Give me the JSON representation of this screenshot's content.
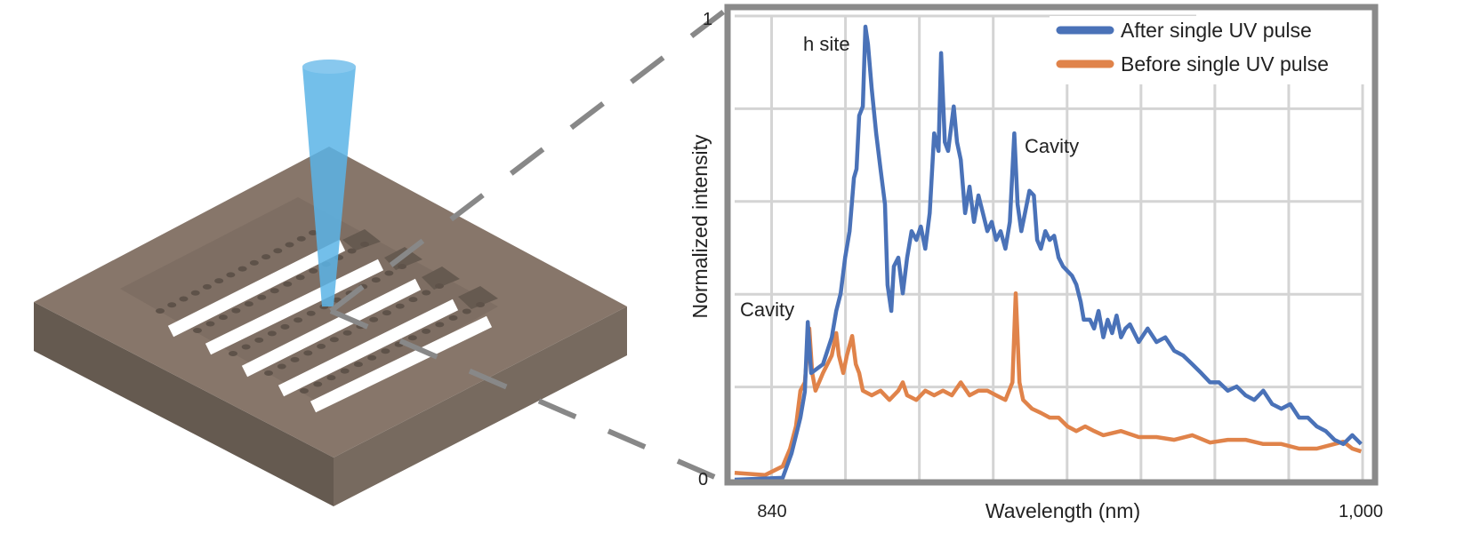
{
  "colors": {
    "after": "#4a72b8",
    "before": "#e0834a",
    "beam": "#5ab4e6",
    "slab_top": "#87766a",
    "slab_side": "#655a50",
    "frame": "#8a8a8a",
    "grid": "#d4d4d4"
  },
  "chart_data": {
    "type": "line",
    "title": "",
    "xlabel": "Wavelength (nm)",
    "ylabel": "Normalized intensity",
    "xlim": [
      830,
      1000
    ],
    "ylim": [
      0,
      1
    ],
    "x_ticks": [
      {
        "value": 840,
        "label": "840"
      },
      {
        "value": 1000,
        "label": "1,000"
      }
    ],
    "y_ticks": [
      {
        "value": 0,
        "label": "0"
      },
      {
        "value": 1,
        "label": "1"
      }
    ],
    "grid": {
      "x_step": 20,
      "y_step": 0.2,
      "on": true
    },
    "legend": {
      "position": "top-right"
    },
    "annotations": [
      {
        "text": "h site",
        "x": 865,
        "y": 0.92
      },
      {
        "text": "Cavity",
        "x": 906,
        "y": 0.72
      },
      {
        "text": "Cavity",
        "x": 850,
        "y": 0.36
      }
    ],
    "series": [
      {
        "name": "After single UV pulse",
        "color": "#4a72b8",
        "x": [
          830,
          843.0,
          845.4,
          847.8,
          849.0,
          849.8,
          850.7,
          853.9,
          856.3,
          857.5,
          858.7,
          859.9,
          861.1,
          862.3,
          863.0,
          863.7,
          864.7,
          865.4,
          866.1,
          867.1,
          868.3,
          869.5,
          870.7,
          871.4,
          872.4,
          873.1,
          874.3,
          875.5,
          876.7,
          877.9,
          879.2,
          880.4,
          881.6,
          882.8,
          884.0,
          885.2,
          885.9,
          886.9,
          887.8,
          889.3,
          890.2,
          891.2,
          892.4,
          893.6,
          894.8,
          896.0,
          897.2,
          898.4,
          899.6,
          900.8,
          902.0,
          903.3,
          904.5,
          905.7,
          906.6,
          907.6,
          908.6,
          909.8,
          911.0,
          911.9,
          912.9,
          914.1,
          915.3,
          916.5,
          917.7,
          918.9,
          921.3,
          922.5,
          923.7,
          924.5,
          926.2,
          927.3,
          928.5,
          929.8,
          931.0,
          932.2,
          933.4,
          934.6,
          935.8,
          937.0,
          939.4,
          941.8,
          944.2,
          946.6,
          949.0,
          951.4,
          953.9,
          956.3,
          958.7,
          961.1,
          963.5,
          965.9,
          968.3,
          970.7,
          973.1,
          975.5,
          978.0,
          980.4,
          982.8,
          985.2,
          987.6,
          990.0,
          992.4,
          994.8,
          997.2,
          999.6
        ],
        "y": [
          0,
          0.004,
          0.057,
          0.134,
          0.19,
          0.34,
          0.23,
          0.249,
          0.307,
          0.364,
          0.402,
          0.479,
          0.536,
          0.651,
          0.67,
          0.785,
          0.805,
          0.977,
          0.939,
          0.843,
          0.747,
          0.67,
          0.594,
          0.42,
          0.364,
          0.46,
          0.479,
          0.402,
          0.479,
          0.536,
          0.517,
          0.546,
          0.498,
          0.575,
          0.747,
          0.709,
          0.92,
          0.728,
          0.709,
          0.805,
          0.728,
          0.69,
          0.575,
          0.632,
          0.556,
          0.613,
          0.575,
          0.536,
          0.556,
          0.517,
          0.536,
          0.498,
          0.556,
          0.747,
          0.594,
          0.536,
          0.575,
          0.623,
          0.613,
          0.517,
          0.498,
          0.536,
          0.517,
          0.526,
          0.479,
          0.46,
          0.44,
          0.421,
          0.383,
          0.345,
          0.345,
          0.326,
          0.364,
          0.307,
          0.345,
          0.316,
          0.354,
          0.307,
          0.326,
          0.335,
          0.297,
          0.326,
          0.297,
          0.307,
          0.278,
          0.268,
          0.249,
          0.23,
          0.21,
          0.21,
          0.192,
          0.201,
          0.182,
          0.172,
          0.192,
          0.163,
          0.153,
          0.163,
          0.134,
          0.134,
          0.115,
          0.105,
          0.086,
          0.077,
          0.096,
          0.077
        ]
      },
      {
        "name": "Before single UV pulse",
        "color": "#e0834a",
        "x": [
          830,
          838.2,
          843.0,
          845.0,
          846.6,
          847.8,
          849.0,
          850.2,
          851.0,
          851.9,
          853.9,
          856.3,
          857.5,
          858.2,
          859.4,
          860.4,
          861.8,
          862.8,
          863.7,
          864.7,
          867.1,
          869.5,
          871.9,
          874.3,
          875.5,
          876.7,
          879.2,
          881.6,
          884.0,
          886.4,
          888.8,
          891.2,
          893.6,
          896.0,
          898.4,
          900.8,
          903.3,
          905.2,
          906.1,
          907.1,
          908.1,
          910.5,
          912.9,
          915.3,
          917.7,
          920.1,
          922.5,
          924.9,
          927.3,
          929.8,
          934.6,
          939.4,
          944.2,
          949.0,
          953.9,
          958.7,
          963.5,
          968.3,
          973.1,
          978.0,
          982.8,
          987.6,
          992.4,
          994.8,
          997.2,
          999.6
        ],
        "y": [
          0.015,
          0.01,
          0.029,
          0.067,
          0.115,
          0.192,
          0.21,
          0.326,
          0.23,
          0.192,
          0.23,
          0.268,
          0.316,
          0.268,
          0.23,
          0.268,
          0.31,
          0.249,
          0.23,
          0.192,
          0.182,
          0.192,
          0.172,
          0.192,
          0.21,
          0.182,
          0.172,
          0.192,
          0.182,
          0.192,
          0.182,
          0.21,
          0.182,
          0.192,
          0.192,
          0.182,
          0.172,
          0.21,
          0.402,
          0.21,
          0.172,
          0.153,
          0.144,
          0.134,
          0.134,
          0.115,
          0.105,
          0.115,
          0.105,
          0.096,
          0.105,
          0.092,
          0.092,
          0.086,
          0.096,
          0.08,
          0.086,
          0.086,
          0.077,
          0.077,
          0.067,
          0.067,
          0.077,
          0.082,
          0.067,
          0.061
        ]
      }
    ]
  }
}
